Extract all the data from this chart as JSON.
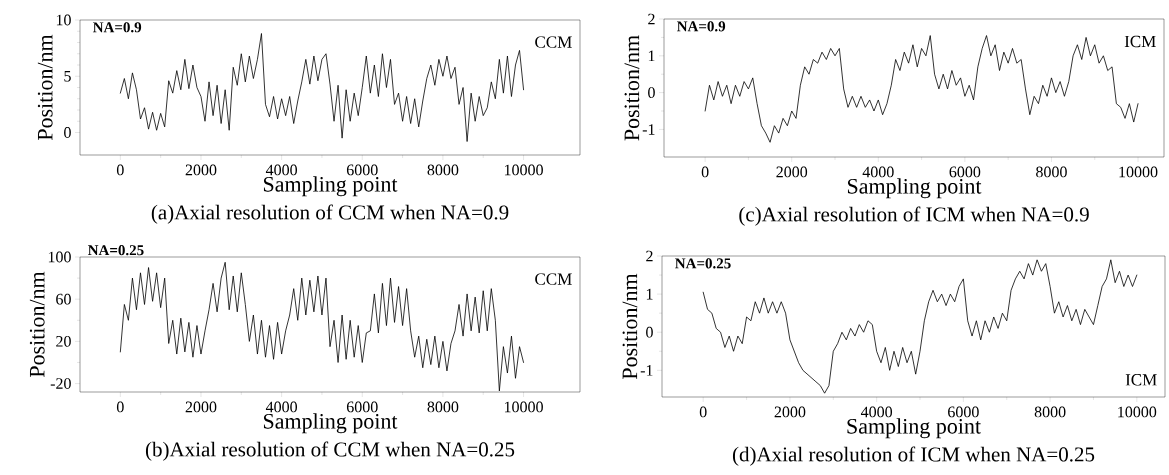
{
  "chart_data": [
    {
      "type": "line",
      "title": "(a)Axial resolution of CCM when NA=0.9",
      "xlabel": "Sampling point",
      "ylabel": "Position/nm",
      "annotations": [
        "NA=0.9",
        "CCM"
      ],
      "xlim": [
        -1000,
        11400
      ],
      "ylim": [
        -2,
        10
      ],
      "xticks": [
        0,
        2000,
        4000,
        6000,
        8000,
        10000
      ],
      "yticks": [
        0,
        5,
        10
      ],
      "series": [
        {
          "color": "#000000",
          "x": [
            0,
            100,
            200,
            300,
            400,
            500,
            600,
            700,
            800,
            900,
            1000,
            1100,
            1200,
            1300,
            1400,
            1500,
            1600,
            1700,
            1800,
            1900,
            2000,
            2100,
            2200,
            2300,
            2400,
            2500,
            2600,
            2700,
            2800,
            2900,
            3000,
            3100,
            3200,
            3300,
            3400,
            3500,
            3600,
            3700,
            3800,
            3900,
            4000,
            4100,
            4200,
            4300,
            4400,
            4500,
            4600,
            4700,
            4800,
            4900,
            5000,
            5100,
            5200,
            5300,
            5400,
            5500,
            5600,
            5700,
            5800,
            5900,
            6000,
            6100,
            6200,
            6300,
            6400,
            6500,
            6600,
            6700,
            6800,
            6900,
            7000,
            7100,
            7200,
            7300,
            7400,
            7500,
            7600,
            7700,
            7800,
            7900,
            8000,
            8100,
            8200,
            8300,
            8400,
            8500,
            8600,
            8700,
            8800,
            8900,
            9000,
            9100,
            9200,
            9300,
            9400,
            9500,
            9600,
            9700,
            9800,
            9900,
            10000
          ],
          "values": [
            3.5,
            4.8,
            3.0,
            5.3,
            3.8,
            1.2,
            2.2,
            0.3,
            1.8,
            0.2,
            1.7,
            0.5,
            4.6,
            3.5,
            5.5,
            3.8,
            6.5,
            3.9,
            6.0,
            4.0,
            3.2,
            1.0,
            4.5,
            1.5,
            4.2,
            0.8,
            3.8,
            0.2,
            5.8,
            4.2,
            7.0,
            4.5,
            6.8,
            4.8,
            6.5,
            8.8,
            2.5,
            1.4,
            3.2,
            1.2,
            3.0,
            1.5,
            3.2,
            0.8,
            2.8,
            4.5,
            6.5,
            4.3,
            6.8,
            4.6,
            6.5,
            7.0,
            4.3,
            1.0,
            4.2,
            -0.5,
            3.8,
            1.0,
            3.5,
            1.5,
            4.0,
            6.8,
            3.5,
            6.0,
            3.2,
            7.0,
            4.0,
            6.5,
            2.5,
            3.5,
            1.0,
            3.2,
            0.8,
            3.0,
            0.5,
            2.8,
            4.8,
            6.0,
            4.2,
            6.5,
            5.0,
            6.8,
            4.8,
            5.8,
            2.5,
            4.0,
            -0.8,
            3.5,
            1.0,
            3.2,
            1.5,
            2.2,
            4.5,
            3.0,
            6.5,
            3.5,
            6.8,
            3.2,
            6.0,
            7.3,
            3.8
          ]
        }
      ]
    },
    {
      "type": "line",
      "title": "(c)Axial resolution of ICM when NA=0.9",
      "xlabel": "Sampling point",
      "ylabel": "Position/nm",
      "annotations": [
        "NA=0.9",
        "ICM"
      ],
      "xlim": [
        -950,
        10600
      ],
      "ylim": [
        -1.75,
        2
      ],
      "xticks": [
        0,
        2000,
        4000,
        6000,
        8000,
        10000
      ],
      "yticks": [
        -1,
        0,
        1,
        2
      ],
      "series": [
        {
          "color": "#000000",
          "x": [
            0,
            100,
            200,
            300,
            400,
            500,
            600,
            700,
            800,
            900,
            1000,
            1100,
            1200,
            1300,
            1400,
            1500,
            1600,
            1700,
            1800,
            1900,
            2000,
            2100,
            2200,
            2300,
            2400,
            2500,
            2600,
            2700,
            2800,
            2900,
            3000,
            3100,
            3200,
            3300,
            3400,
            3500,
            3600,
            3700,
            3800,
            3900,
            4000,
            4100,
            4200,
            4300,
            4400,
            4500,
            4600,
            4700,
            4800,
            4900,
            5000,
            5100,
            5200,
            5300,
            5400,
            5500,
            5600,
            5700,
            5800,
            5900,
            6000,
            6100,
            6200,
            6300,
            6400,
            6500,
            6600,
            6700,
            6800,
            6900,
            7000,
            7100,
            7200,
            7300,
            7400,
            7500,
            7600,
            7700,
            7800,
            7900,
            8000,
            8100,
            8200,
            8300,
            8400,
            8500,
            8600,
            8700,
            8800,
            8900,
            9000,
            9100,
            9200,
            9300,
            9400,
            9500,
            9600,
            9700,
            9800,
            9900,
            10000
          ],
          "values": [
            -0.5,
            0.2,
            -0.2,
            0.3,
            -0.1,
            0.2,
            -0.3,
            0.2,
            -0.1,
            0.3,
            0.1,
            0.4,
            -0.3,
            -0.9,
            -1.1,
            -1.35,
            -0.9,
            -1.1,
            -0.7,
            -0.9,
            -0.5,
            -0.7,
            0.2,
            0.7,
            0.5,
            0.9,
            0.8,
            1.1,
            0.9,
            1.2,
            1.0,
            1.2,
            0.1,
            -0.4,
            -0.1,
            -0.4,
            -0.1,
            -0.4,
            -0.2,
            -0.5,
            -0.2,
            -0.6,
            -0.3,
            0.2,
            0.9,
            0.6,
            1.1,
            0.8,
            1.3,
            0.7,
            1.2,
            1.0,
            1.55,
            0.5,
            0.1,
            0.5,
            0.1,
            0.6,
            0.2,
            0.4,
            -0.1,
            0.2,
            -0.2,
            0.7,
            1.2,
            1.55,
            1.0,
            1.3,
            0.6,
            1.1,
            0.8,
            1.2,
            0.8,
            0.9,
            0.1,
            -0.6,
            -0.1,
            -0.3,
            0.2,
            -0.1,
            0.4,
            0.0,
            0.3,
            -0.1,
            0.3,
            1.0,
            1.3,
            0.9,
            1.5,
            1.0,
            1.3,
            0.8,
            1.0,
            0.6,
            0.7,
            -0.3,
            -0.4,
            -0.7,
            -0.3,
            -0.8,
            -0.3
          ]
        }
      ]
    },
    {
      "type": "line",
      "title": "(b)Axial resolution of CCM when NA=0.25",
      "xlabel": "Sampling point",
      "ylabel": "Position/nm",
      "annotations": [
        "NA=0.25",
        "CCM"
      ],
      "xlim": [
        -1000,
        11400
      ],
      "ylim": [
        -28,
        100
      ],
      "xticks": [
        0,
        2000,
        4000,
        6000,
        8000,
        10000
      ],
      "yticks": [
        -20,
        20,
        60,
        100
      ],
      "series": [
        {
          "color": "#000000",
          "x": [
            0,
            100,
            200,
            300,
            400,
            500,
            600,
            700,
            800,
            900,
            1000,
            1100,
            1200,
            1300,
            1400,
            1500,
            1600,
            1700,
            1800,
            1900,
            2000,
            2100,
            2200,
            2300,
            2400,
            2500,
            2600,
            2700,
            2800,
            2900,
            3000,
            3100,
            3200,
            3300,
            3400,
            3500,
            3600,
            3700,
            3800,
            3900,
            4000,
            4100,
            4200,
            4300,
            4400,
            4500,
            4600,
            4700,
            4800,
            4900,
            5000,
            5100,
            5200,
            5300,
            5400,
            5500,
            5600,
            5700,
            5800,
            5900,
            6000,
            6100,
            6200,
            6300,
            6400,
            6500,
            6600,
            6700,
            6800,
            6900,
            7000,
            7100,
            7200,
            7300,
            7400,
            7500,
            7600,
            7700,
            7800,
            7900,
            8000,
            8100,
            8200,
            8300,
            8400,
            8500,
            8600,
            8700,
            8800,
            8900,
            9000,
            9100,
            9200,
            9300,
            9400,
            9500,
            9600,
            9700,
            9800,
            9900,
            10000
          ],
          "values": [
            10,
            55,
            40,
            80,
            50,
            85,
            55,
            90,
            58,
            85,
            52,
            80,
            18,
            40,
            8,
            42,
            10,
            38,
            5,
            35,
            8,
            30,
            50,
            75,
            48,
            80,
            95,
            50,
            82,
            48,
            85,
            55,
            20,
            45,
            8,
            40,
            5,
            35,
            3,
            38,
            8,
            30,
            45,
            70,
            40,
            80,
            45,
            78,
            48,
            82,
            45,
            80,
            15,
            40,
            0,
            45,
            3,
            40,
            5,
            35,
            0,
            28,
            30,
            65,
            28,
            75,
            35,
            80,
            38,
            72,
            35,
            70,
            30,
            5,
            25,
            -5,
            22,
            -2,
            25,
            -5,
            20,
            -8,
            18,
            30,
            55,
            25,
            65,
            30,
            62,
            28,
            68,
            30,
            70,
            40,
            -27,
            15,
            -10,
            25,
            -15,
            15,
            0
          ]
        }
      ]
    },
    {
      "type": "line",
      "title": "(d)Axial resolution of ICM when NA=0.25",
      "xlabel": "Sampling point",
      "ylabel": "Position/nm",
      "annotations": [
        "NA=0.25",
        "ICM"
      ],
      "xlim": [
        -950,
        10650
      ],
      "ylim": [
        -1.7,
        2
      ],
      "xticks": [
        0,
        2000,
        4000,
        6000,
        8000,
        10000
      ],
      "yticks": [
        -1,
        0,
        1,
        2
      ],
      "series": [
        {
          "color": "#000000",
          "x": [
            0,
            100,
            200,
            300,
            400,
            500,
            600,
            700,
            800,
            900,
            1000,
            1100,
            1200,
            1300,
            1400,
            1500,
            1600,
            1700,
            1800,
            1900,
            2000,
            2100,
            2200,
            2300,
            2400,
            2500,
            2600,
            2700,
            2800,
            2900,
            3000,
            3100,
            3200,
            3300,
            3400,
            3500,
            3600,
            3700,
            3800,
            3900,
            4000,
            4100,
            4200,
            4300,
            4400,
            4500,
            4600,
            4700,
            4800,
            4900,
            5000,
            5100,
            5200,
            5300,
            5400,
            5500,
            5600,
            5700,
            5800,
            5900,
            6000,
            6100,
            6200,
            6300,
            6400,
            6500,
            6600,
            6700,
            6800,
            6900,
            7000,
            7100,
            7200,
            7300,
            7400,
            7500,
            7600,
            7700,
            7800,
            7900,
            8000,
            8100,
            8200,
            8300,
            8400,
            8500,
            8600,
            8700,
            8800,
            8900,
            9000,
            9100,
            9200,
            9300,
            9400,
            9500,
            9600,
            9700,
            9800,
            9900,
            10000
          ],
          "values": [
            1.05,
            0.6,
            0.5,
            0.1,
            0.0,
            -0.4,
            -0.1,
            -0.5,
            -0.1,
            -0.3,
            0.4,
            0.3,
            0.8,
            0.5,
            0.9,
            0.5,
            0.8,
            0.5,
            0.8,
            0.5,
            -0.2,
            -0.5,
            -0.8,
            -1.0,
            -1.1,
            -1.2,
            -1.3,
            -1.4,
            -1.6,
            -1.4,
            -0.5,
            -0.3,
            0.0,
            -0.2,
            0.1,
            -0.1,
            0.2,
            0.0,
            0.3,
            0.2,
            -0.5,
            -0.8,
            -0.4,
            -1.0,
            -0.5,
            -0.9,
            -0.4,
            -0.8,
            -0.5,
            -1.1,
            -0.5,
            0.3,
            0.8,
            1.1,
            0.8,
            1.0,
            0.7,
            1.0,
            0.8,
            1.2,
            1.4,
            0.3,
            -0.1,
            0.3,
            -0.2,
            0.3,
            0.0,
            0.4,
            0.1,
            0.5,
            0.3,
            1.1,
            1.4,
            1.6,
            1.4,
            1.8,
            1.5,
            1.9,
            1.6,
            1.8,
            1.2,
            0.5,
            0.8,
            0.4,
            0.7,
            0.3,
            0.6,
            0.2,
            0.6,
            0.4,
            0.2,
            0.7,
            1.2,
            1.4,
            1.9,
            1.3,
            1.6,
            1.2,
            1.5,
            1.2,
            1.5
          ]
        }
      ]
    }
  ]
}
